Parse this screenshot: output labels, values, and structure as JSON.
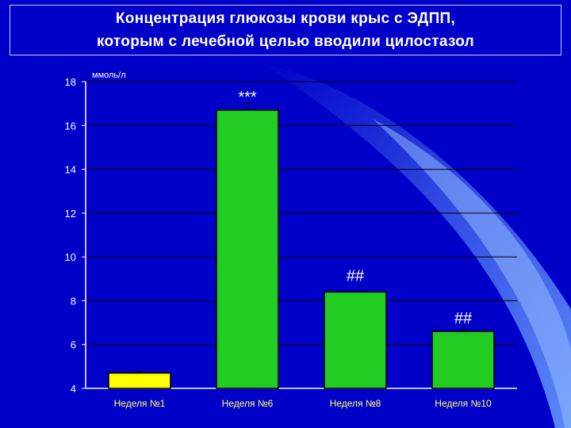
{
  "title_lines": [
    "Концентрация глюкозы крови крыс с ЭДПП,",
    "которым с лечебной целью вводили цилостазол"
  ],
  "chart_data": {
    "type": "bar",
    "title": "Концентрация глюкозы крови крыс с ЭДПП, которым с лечебной целью вводили цилостазол",
    "ylabel": "ммоль/л",
    "xlabel": "",
    "ylim": [
      4,
      18
    ],
    "yticks": [
      4,
      6,
      8,
      10,
      12,
      14,
      16,
      18
    ],
    "grid": true,
    "categories": [
      "Неделя №1",
      "Неделя №6",
      "Неделя №8",
      "Неделя №10"
    ],
    "values": [
      4.7,
      16.7,
      8.4,
      6.6
    ],
    "error": [
      0.1,
      0.3,
      0.0,
      0.15
    ],
    "annotations": [
      "",
      "***",
      "##",
      "##"
    ],
    "colors": {
      "first_bar": "#ffff00",
      "other_bars": "#22cc22",
      "axis_text": "#ffffff",
      "category_text": "#ffff66",
      "background": "#0000c8"
    }
  }
}
